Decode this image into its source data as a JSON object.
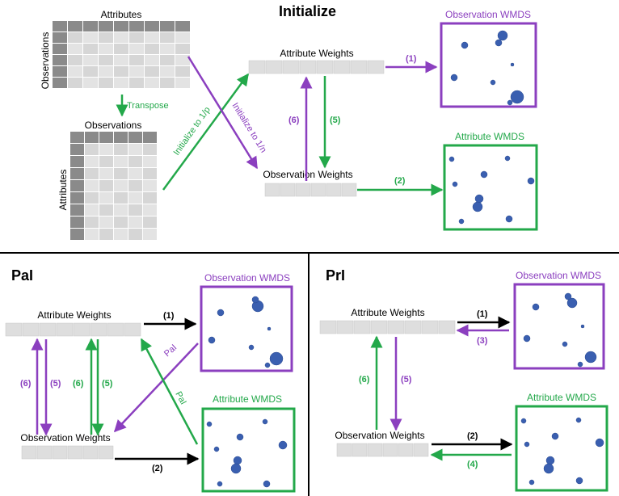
{
  "top": {
    "title": "Initialize",
    "matrix1": {
      "col_label": "Attributes",
      "row_label": "Observations"
    },
    "transpose_label": "Transpose",
    "matrix2": {
      "col_label": "Observations",
      "row_label": "Attributes"
    },
    "init_green_label": "Initialize to 1/p",
    "init_purple_label": "Initialize to 1/n",
    "attribute_weights_label": "Attribute Weights",
    "observation_weights_label": "Observation Weights",
    "obs_wmds_title": "Observation WMDS",
    "attr_wmds_title": "Attribute WMDS",
    "labels": {
      "a1": "(1)",
      "a2": "(2)",
      "a5": "(5)",
      "a6": "(6)"
    }
  },
  "pai": {
    "title": "PaI",
    "attribute_weights_label": "Attribute Weights",
    "observation_weights_label": "Observation Weights",
    "obs_wmds_title": "Observation WMDS",
    "attr_wmds_title": "Attribute WMDS",
    "pai_label_1": "PaI",
    "pai_label_2": "PaI",
    "labels": {
      "a1": "(1)",
      "a2": "(2)",
      "p6": "(6)",
      "p5": "(5)",
      "g6": "(6)",
      "g5": "(5)"
    }
  },
  "pri": {
    "title": "PrI",
    "attribute_weights_label": "Attribute Weights",
    "observation_weights_label": "Observation Weights",
    "obs_wmds_title": "Observation WMDS",
    "attr_wmds_title": "Attribute WMDS",
    "labels": {
      "a1": "(1)",
      "a3": "(3)",
      "a2": "(2)",
      "a4": "(4)",
      "g6": "(6)",
      "p5": "(5)"
    }
  },
  "colors": {
    "purple": "#8b3fbf",
    "green": "#23a84a",
    "dot": "#3a5fb0",
    "black": "#000000"
  }
}
